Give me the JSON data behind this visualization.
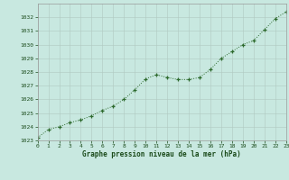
{
  "x": [
    0,
    1,
    2,
    3,
    4,
    5,
    6,
    7,
    8,
    9,
    10,
    11,
    12,
    13,
    14,
    15,
    16,
    17,
    18,
    19,
    20,
    21,
    22,
    23
  ],
  "y": [
    1023.2,
    1023.8,
    1024.0,
    1024.3,
    1024.5,
    1024.8,
    1025.2,
    1025.5,
    1026.0,
    1026.7,
    1027.5,
    1027.8,
    1027.6,
    1027.45,
    1027.45,
    1027.6,
    1028.2,
    1029.0,
    1029.5,
    1030.0,
    1030.3,
    1031.1,
    1031.9,
    1032.4
  ],
  "line_color": "#2d6a2d",
  "marker_color": "#2d6a2d",
  "background_color": "#c8e8e0",
  "grid_color": "#b0c8c0",
  "xlabel": "Graphe pression niveau de la mer (hPa)",
  "xlabel_color": "#1a4a1a",
  "tick_color": "#1a4a1a",
  "ylim": [
    1023,
    1033
  ],
  "yticks": [
    1023,
    1024,
    1025,
    1026,
    1027,
    1028,
    1029,
    1030,
    1031,
    1032
  ],
  "xticks": [
    0,
    1,
    2,
    3,
    4,
    5,
    6,
    7,
    8,
    9,
    10,
    11,
    12,
    13,
    14,
    15,
    16,
    17,
    18,
    19,
    20,
    21,
    22,
    23
  ],
  "spine_color": "#999999",
  "figsize": [
    3.2,
    2.0
  ],
  "dpi": 100
}
